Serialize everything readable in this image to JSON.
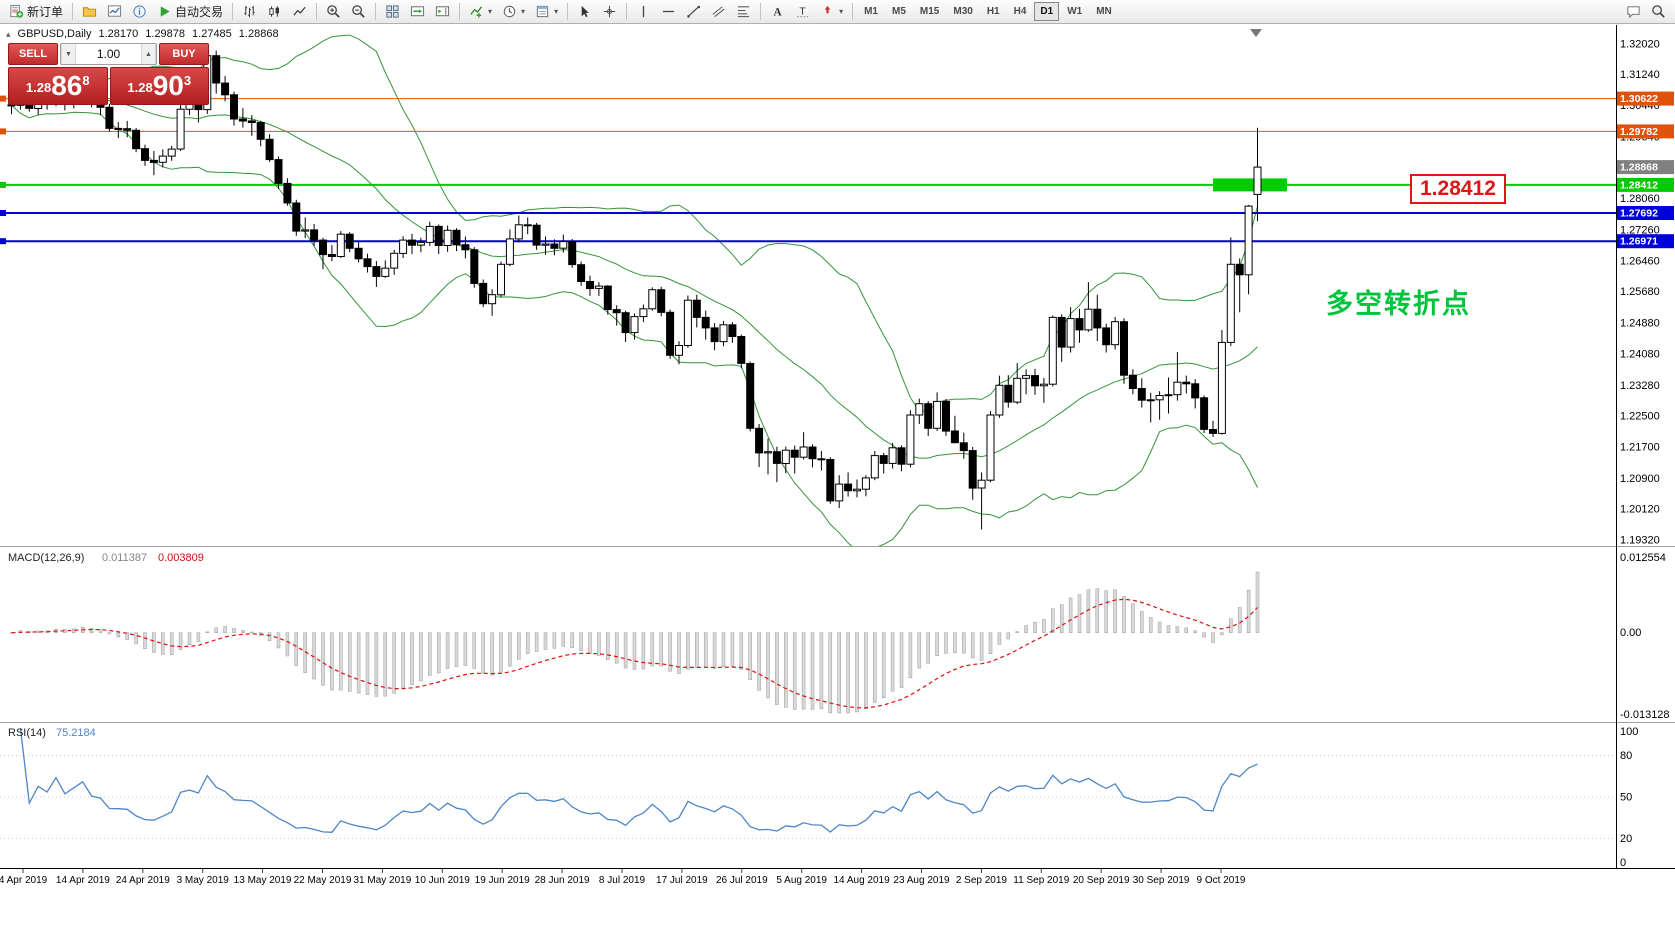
{
  "toolbar": {
    "groups": [
      {
        "name": "trade",
        "items": [
          {
            "name": "new-order",
            "label": "新订单",
            "icon": "new-order"
          }
        ]
      },
      {
        "name": "panels",
        "items": [
          {
            "name": "profiles",
            "icon": "profiles"
          },
          {
            "name": "market-watch",
            "icon": "market-watch"
          },
          {
            "name": "data-window",
            "icon": "data-window"
          },
          {
            "name": "autotrading",
            "label": "自动交易",
            "icon": "autotrading"
          }
        ]
      },
      {
        "name": "chart-types",
        "items": [
          {
            "name": "bar-chart",
            "icon": "bars"
          },
          {
            "name": "candlestick-chart",
            "icon": "candles"
          },
          {
            "name": "line-chart",
            "icon": "line-chart"
          }
        ]
      },
      {
        "name": "zoom",
        "items": [
          {
            "name": "zoom-in",
            "icon": "zoom-in"
          },
          {
            "name": "zoom-out",
            "icon": "zoom-out"
          }
        ]
      },
      {
        "name": "windows",
        "items": [
          {
            "name": "tile-windows",
            "icon": "tile"
          },
          {
            "name": "auto-scroll",
            "icon": "auto-scroll"
          },
          {
            "name": "chart-shift",
            "icon": "chart-shift"
          }
        ]
      },
      {
        "name": "chart-tools",
        "items": [
          {
            "name": "indicators",
            "icon": "indicators",
            "dropdown": true
          },
          {
            "name": "periods",
            "icon": "clock",
            "dropdown": true
          },
          {
            "name": "templates",
            "icon": "template",
            "dropdown": true
          }
        ]
      },
      {
        "name": "pointer",
        "items": [
          {
            "name": "cursor",
            "icon": "cursor"
          },
          {
            "name": "crosshair",
            "icon": "crosshair"
          }
        ]
      },
      {
        "name": "draw-lines",
        "items": [
          {
            "name": "vertical-line",
            "icon": "vline"
          },
          {
            "name": "horizontal-line",
            "icon": "hline"
          },
          {
            "name": "trendline",
            "icon": "trendline"
          },
          {
            "name": "equidistant-channel",
            "icon": "channel"
          },
          {
            "name": "fibonacci-retracement",
            "icon": "fibo"
          }
        ]
      },
      {
        "name": "draw-text",
        "items": [
          {
            "name": "text",
            "icon": "text"
          },
          {
            "name": "text-label",
            "icon": "label"
          },
          {
            "name": "arrow-objects",
            "icon": "arrows",
            "dropdown": true
          }
        ]
      }
    ],
    "timeframes": [
      "M1",
      "M5",
      "M15",
      "M30",
      "H1",
      "H4",
      "D1",
      "W1",
      "MN"
    ],
    "active_timeframe": "D1",
    "right_icons": [
      {
        "name": "chat",
        "icon": "chat"
      },
      {
        "name": "search",
        "icon": "search"
      }
    ]
  },
  "chart": {
    "header": {
      "collapse_arrow": "▴",
      "symbol": "GBPUSD,Daily",
      "open": "1.28170",
      "high": "1.29878",
      "low": "1.27485",
      "close": "1.28868"
    },
    "trade_panel": {
      "sell_label": "SELL",
      "buy_label": "BUY",
      "volume": "1.00",
      "step_down": "▼",
      "step_up": "▲",
      "sell_price": {
        "base": "1.28",
        "big": "86",
        "pip": "8"
      },
      "buy_price": {
        "base": "1.28",
        "big": "90",
        "pip": "3"
      }
    },
    "annotation": {
      "text": "多空转折点",
      "color": "#00c43c"
    },
    "price_callout": {
      "text": "1.28412",
      "color": "#e01515"
    }
  },
  "chart_data": {
    "type": "candlestick",
    "symbol": "GBPUSD",
    "timeframe": "Daily",
    "y_axis_ticks": [
      "1.32020",
      "1.31240",
      "1.30440",
      "1.29640",
      "1.28860",
      "1.28060",
      "1.27260",
      "1.26460",
      "1.25680",
      "1.24880",
      "1.24080",
      "1.23280",
      "1.22500",
      "1.21700",
      "1.20900",
      "1.20120",
      "1.19320"
    ],
    "x_axis_labels": [
      "4 Apr 2019",
      "14 Apr 2019",
      "24 Apr 2019",
      "3 May 2019",
      "13 May 2019",
      "22 May 2019",
      "31 May 2019",
      "10 Jun 2019",
      "19 Jun 2019",
      "28 Jun 2019",
      "8 Jul 2019",
      "17 Jul 2019",
      "26 Jul 2019",
      "5 Aug 2019",
      "14 Aug 2019",
      "23 Aug 2019",
      "2 Sep 2019",
      "11 Sep 2019",
      "20 Sep 2019",
      "30 Sep 2019",
      "9 Oct 2019"
    ],
    "horizontal_lines": [
      {
        "price": 1.30622,
        "label": "1.30622",
        "color": "#E0520A",
        "width": 1
      },
      {
        "price": 1.29782,
        "label": "1.29782",
        "color": "#E0520A",
        "width": 1
      },
      {
        "price": 1.28412,
        "label": "1.28412",
        "color": "#00CC00",
        "width": 2
      },
      {
        "price": 1.27692,
        "label": "1.27692",
        "color": "#0000D8",
        "width": 2
      },
      {
        "price": 1.26971,
        "label": "1.26971",
        "color": "#0000D8",
        "width": 2
      }
    ],
    "current_price": {
      "value": 1.28868,
      "label": "1.28868",
      "color": "#808080"
    },
    "rectangle_object": {
      "price": 1.28412,
      "x": 1213,
      "width": 74,
      "height": 13,
      "color": "#00CC00"
    },
    "bollinger": {
      "period": 20,
      "deviation": 2,
      "color": "#35953A"
    },
    "indicators": [
      {
        "name": "MACD",
        "label": "MACD(12,26,9)",
        "values": [
          "0.011387",
          "0.003809"
        ],
        "y_ticks": [
          "0.012554",
          "0.00",
          "-0.013128"
        ],
        "histogram_color": "#d9d9d9",
        "histogram_border": "#9a9a9a",
        "signal_color": "#dd1111"
      },
      {
        "name": "RSI",
        "label": "RSI(14)",
        "value": "75.2184",
        "y_ticks": [
          "100",
          "80",
          "50",
          "20",
          "0"
        ],
        "levels": [
          80,
          50,
          20
        ],
        "line_color": "#4e86c8"
      }
    ],
    "candles": [
      [
        1.3046,
        1.306,
        1.3022,
        1.3045
      ],
      [
        1.3045,
        1.3099,
        1.3034,
        1.3086
      ],
      [
        1.3086,
        1.3092,
        1.3029,
        1.3037
      ],
      [
        1.3037,
        1.3072,
        1.3021,
        1.3063
      ],
      [
        1.3063,
        1.3077,
        1.3034,
        1.3054
      ],
      [
        1.3054,
        1.3102,
        1.3043,
        1.309
      ],
      [
        1.309,
        1.3096,
        1.3032,
        1.3054
      ],
      [
        1.3054,
        1.3089,
        1.3037,
        1.3074
      ],
      [
        1.3074,
        1.3121,
        1.306,
        1.3098
      ],
      [
        1.3098,
        1.3108,
        1.304,
        1.3049
      ],
      [
        1.3049,
        1.3069,
        1.302,
        1.304
      ],
      [
        1.304,
        1.3049,
        1.2978,
        1.2986
      ],
      [
        1.2986,
        1.3002,
        1.2961,
        1.2985
      ],
      [
        1.2985,
        1.3005,
        1.2963,
        1.2981
      ],
      [
        1.2981,
        1.2987,
        1.2925,
        1.2934
      ],
      [
        1.2934,
        1.2944,
        1.289,
        1.2904
      ],
      [
        1.2904,
        1.2928,
        1.2866,
        1.2899
      ],
      [
        1.2899,
        1.2932,
        1.2886,
        1.2915
      ],
      [
        1.2915,
        1.2941,
        1.2903,
        1.2933
      ],
      [
        1.2933,
        1.3048,
        1.2928,
        1.3035
      ],
      [
        1.3035,
        1.3069,
        1.302,
        1.305
      ],
      [
        1.305,
        1.3058,
        1.3001,
        1.3034
      ],
      [
        1.3034,
        1.3176,
        1.3023,
        1.3172
      ],
      [
        1.3172,
        1.3185,
        1.3075,
        1.3102
      ],
      [
        1.3102,
        1.312,
        1.3055,
        1.3072
      ],
      [
        1.3072,
        1.308,
        1.2993,
        1.301
      ],
      [
        1.301,
        1.3038,
        1.2988,
        1.3005
      ],
      [
        1.3005,
        1.302,
        1.2967,
        1.3001
      ],
      [
        1.3001,
        1.3005,
        1.294,
        1.2958
      ],
      [
        1.2958,
        1.2971,
        1.29,
        1.2906
      ],
      [
        1.2906,
        1.2914,
        1.2831,
        1.2845
      ],
      [
        1.2845,
        1.2858,
        1.2788,
        1.2795
      ],
      [
        1.2795,
        1.2803,
        1.2711,
        1.2723
      ],
      [
        1.2723,
        1.2758,
        1.2705,
        1.2726
      ],
      [
        1.2726,
        1.2741,
        1.2685,
        1.27
      ],
      [
        1.27,
        1.2706,
        1.2625,
        1.2663
      ],
      [
        1.2663,
        1.2687,
        1.2646,
        1.2658
      ],
      [
        1.2658,
        1.2723,
        1.2654,
        1.2715
      ],
      [
        1.2715,
        1.272,
        1.2669,
        1.2679
      ],
      [
        1.2679,
        1.2696,
        1.2643,
        1.2652
      ],
      [
        1.2652,
        1.2665,
        1.2617,
        1.2632
      ],
      [
        1.2632,
        1.2646,
        1.258,
        1.2607
      ],
      [
        1.2607,
        1.2648,
        1.2603,
        1.2628
      ],
      [
        1.2628,
        1.2675,
        1.2611,
        1.2666
      ],
      [
        1.2666,
        1.271,
        1.2654,
        1.27
      ],
      [
        1.27,
        1.2716,
        1.2664,
        1.2687
      ],
      [
        1.2687,
        1.2706,
        1.2669,
        1.2694
      ],
      [
        1.2694,
        1.2747,
        1.2685,
        1.2735
      ],
      [
        1.2735,
        1.274,
        1.2664,
        1.2686
      ],
      [
        1.2686,
        1.2737,
        1.267,
        1.2725
      ],
      [
        1.2725,
        1.273,
        1.2672,
        1.2688
      ],
      [
        1.2688,
        1.2709,
        1.2653,
        1.2675
      ],
      [
        1.2675,
        1.2682,
        1.2578,
        1.2589
      ],
      [
        1.2589,
        1.2599,
        1.2528,
        1.2537
      ],
      [
        1.2537,
        1.2574,
        1.2506,
        1.256
      ],
      [
        1.256,
        1.2645,
        1.2554,
        1.2638
      ],
      [
        1.2638,
        1.2727,
        1.2633,
        1.2703
      ],
      [
        1.2703,
        1.2763,
        1.2694,
        1.2739
      ],
      [
        1.2739,
        1.2758,
        1.2715,
        1.2738
      ],
      [
        1.2738,
        1.2744,
        1.2675,
        1.2687
      ],
      [
        1.2687,
        1.2709,
        1.2662,
        1.269
      ],
      [
        1.269,
        1.2702,
        1.2661,
        1.2679
      ],
      [
        1.2679,
        1.2714,
        1.2668,
        1.2696
      ],
      [
        1.2696,
        1.2703,
        1.2629,
        1.2637
      ],
      [
        1.2637,
        1.2645,
        1.2583,
        1.2594
      ],
      [
        1.2594,
        1.2609,
        1.2557,
        1.2576
      ],
      [
        1.2576,
        1.2592,
        1.2557,
        1.2582
      ],
      [
        1.2582,
        1.2585,
        1.2509,
        1.2522
      ],
      [
        1.2522,
        1.2533,
        1.2481,
        1.2514
      ],
      [
        1.2514,
        1.2519,
        1.2439,
        1.2463
      ],
      [
        1.2463,
        1.2512,
        1.2445,
        1.2504
      ],
      [
        1.2504,
        1.2535,
        1.249,
        1.2524
      ],
      [
        1.2524,
        1.2579,
        1.2519,
        1.2573
      ],
      [
        1.2573,
        1.258,
        1.2505,
        1.2515
      ],
      [
        1.2515,
        1.2522,
        1.2396,
        1.2405
      ],
      [
        1.2405,
        1.2441,
        1.2382,
        1.243
      ],
      [
        1.243,
        1.2558,
        1.2424,
        1.2546
      ],
      [
        1.2546,
        1.256,
        1.2476,
        1.2502
      ],
      [
        1.2502,
        1.2519,
        1.2445,
        1.2475
      ],
      [
        1.2475,
        1.2487,
        1.2418,
        1.244
      ],
      [
        1.244,
        1.2493,
        1.2428,
        1.2483
      ],
      [
        1.2483,
        1.249,
        1.2437,
        1.2453
      ],
      [
        1.2453,
        1.2458,
        1.2372,
        1.2384
      ],
      [
        1.2384,
        1.2389,
        1.221,
        1.2218
      ],
      [
        1.2218,
        1.2229,
        1.2119,
        1.2155
      ],
      [
        1.2155,
        1.2192,
        1.21,
        1.2158
      ],
      [
        1.2158,
        1.2171,
        1.208,
        1.2128
      ],
      [
        1.2128,
        1.2171,
        1.2103,
        1.2162
      ],
      [
        1.2162,
        1.2174,
        1.2102,
        1.2144
      ],
      [
        1.2144,
        1.2208,
        1.2138,
        1.217
      ],
      [
        1.217,
        1.2177,
        1.2118,
        1.214
      ],
      [
        1.214,
        1.216,
        1.211,
        1.2138
      ],
      [
        1.2138,
        1.2144,
        1.2025,
        1.2032
      ],
      [
        1.2032,
        1.2098,
        1.2014,
        1.2075
      ],
      [
        1.2075,
        1.2105,
        1.2043,
        1.2058
      ],
      [
        1.2058,
        1.2087,
        1.2041,
        1.2062
      ],
      [
        1.2062,
        1.2098,
        1.2044,
        1.2091
      ],
      [
        1.2091,
        1.216,
        1.2085,
        1.2148
      ],
      [
        1.2148,
        1.2155,
        1.2102,
        1.2128
      ],
      [
        1.2128,
        1.2181,
        1.2115,
        1.2168
      ],
      [
        1.2168,
        1.2174,
        1.2108,
        1.2126
      ],
      [
        1.2126,
        1.2264,
        1.2118,
        1.2252
      ],
      [
        1.2252,
        1.2294,
        1.2229,
        1.2281
      ],
      [
        1.2281,
        1.2288,
        1.2198,
        1.2218
      ],
      [
        1.2218,
        1.231,
        1.2211,
        1.2287
      ],
      [
        1.2287,
        1.2293,
        1.2199,
        1.2211
      ],
      [
        1.2211,
        1.225,
        1.218,
        1.2181
      ],
      [
        1.2181,
        1.2207,
        1.214,
        1.2161
      ],
      [
        1.2161,
        1.217,
        1.2035,
        1.2065
      ],
      [
        1.2065,
        1.2105,
        1.1959,
        1.2085
      ],
      [
        1.2085,
        1.2262,
        1.208,
        1.2252
      ],
      [
        1.2252,
        1.2353,
        1.2245,
        1.2328
      ],
      [
        1.2328,
        1.2354,
        1.2271,
        1.2285
      ],
      [
        1.2285,
        1.2385,
        1.228,
        1.2346
      ],
      [
        1.2346,
        1.2369,
        1.2305,
        1.2353
      ],
      [
        1.2353,
        1.237,
        1.2304,
        1.2327
      ],
      [
        1.2327,
        1.2347,
        1.2283,
        1.2331
      ],
      [
        1.2331,
        1.2507,
        1.2325,
        1.2502
      ],
      [
        1.2502,
        1.251,
        1.2388,
        1.2426
      ],
      [
        1.2426,
        1.2528,
        1.2412,
        1.2499
      ],
      [
        1.2499,
        1.2524,
        1.2437,
        1.247
      ],
      [
        1.247,
        1.2592,
        1.2465,
        1.2523
      ],
      [
        1.2523,
        1.256,
        1.2441,
        1.2475
      ],
      [
        1.2475,
        1.2486,
        1.2412,
        1.2432
      ],
      [
        1.2432,
        1.2503,
        1.242,
        1.2491
      ],
      [
        1.2491,
        1.25,
        1.2332,
        1.2354
      ],
      [
        1.2354,
        1.2369,
        1.2305,
        1.232
      ],
      [
        1.232,
        1.2346,
        1.2271,
        1.229
      ],
      [
        1.229,
        1.2309,
        1.2233,
        1.2291
      ],
      [
        1.2291,
        1.2313,
        1.224,
        1.2302
      ],
      [
        1.2302,
        1.2348,
        1.2256,
        1.2304
      ],
      [
        1.2304,
        1.2413,
        1.2289,
        1.2336
      ],
      [
        1.2336,
        1.2353,
        1.2307,
        1.2332
      ],
      [
        1.2332,
        1.2344,
        1.2269,
        1.2296
      ],
      [
        1.2296,
        1.2302,
        1.2206,
        1.2215
      ],
      [
        1.2215,
        1.2237,
        1.2196,
        1.2205
      ],
      [
        1.2205,
        1.247,
        1.2202,
        1.2438
      ],
      [
        1.2438,
        1.2707,
        1.2429,
        1.2638
      ],
      [
        1.2638,
        1.2653,
        1.2515,
        1.2611
      ],
      [
        1.2611,
        1.279,
        1.2561,
        1.2787
      ],
      [
        1.2817,
        1.29878,
        1.27485,
        1.28868
      ]
    ]
  }
}
